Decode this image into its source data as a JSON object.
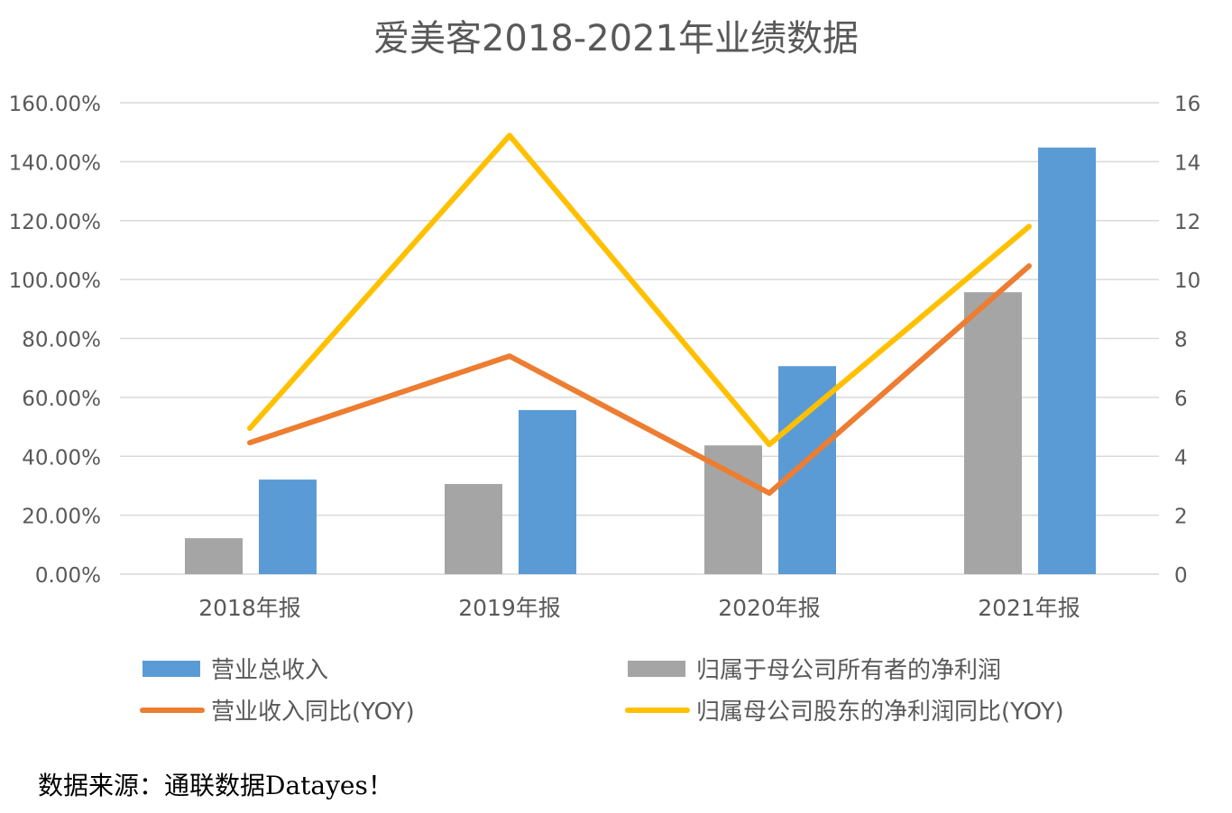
{
  "chart_data": {
    "type": "bar+line",
    "title": "爱美客2018-2021年业绩数据",
    "categories": [
      "2018年报",
      "2019年报",
      "2020年报",
      "2021年报"
    ],
    "left_axis": {
      "ylim": [
        0,
        160
      ],
      "ticks": [
        "0.00%",
        "20.00%",
        "40.00%",
        "60.00%",
        "80.00%",
        "100.00%",
        "120.00%",
        "140.00%",
        "160.00%"
      ]
    },
    "right_axis": {
      "ylim": [
        0,
        16
      ],
      "ticks": [
        "0",
        "2",
        "4",
        "6",
        "8",
        "10",
        "12",
        "14",
        "16"
      ]
    },
    "grid": true,
    "legend_position": "bottom",
    "series": [
      {
        "name": "营业总收入",
        "kind": "bar",
        "axis": "right",
        "color": "#5B9BD5",
        "values": [
          3.21,
          5.57,
          7.06,
          14.48
        ]
      },
      {
        "name": "归属于母公司所有者的净利润",
        "kind": "bar",
        "axis": "right",
        "color": "#A5A5A5",
        "values": [
          1.22,
          3.06,
          4.37,
          9.57
        ]
      },
      {
        "name": "营业收入同比(YOY)",
        "kind": "line",
        "axis": "left",
        "color": "#ED7D31",
        "values": [
          44.6,
          74.0,
          27.5,
          104.6
        ]
      },
      {
        "name": "归属母公司股东的净利润同比(YOY)",
        "kind": "line",
        "axis": "left",
        "color": "#FFC000",
        "values": [
          49.5,
          148.9,
          44.0,
          118.0
        ]
      }
    ]
  },
  "footer": "数据来源：通联数据Datayes！"
}
